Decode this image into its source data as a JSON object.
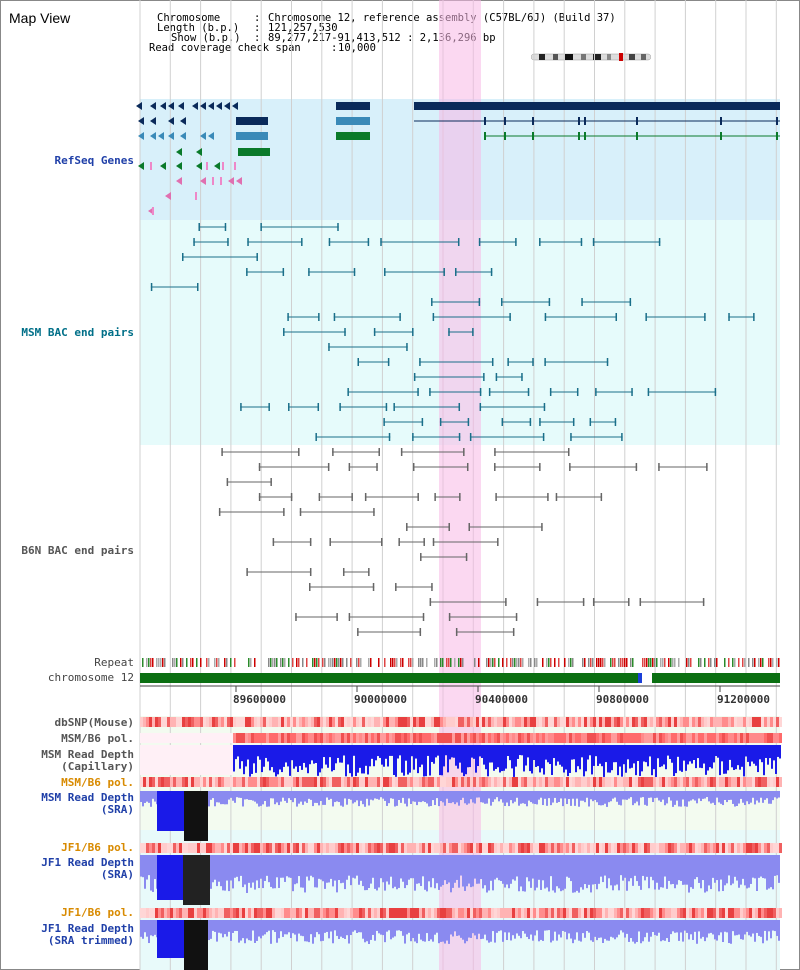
{
  "view_title": "Map View",
  "info": {
    "chromosome_key": "Chromosome",
    "chromosome_val": "Chromosome 12, reference assembly (C57BL/6J) (Build 37)",
    "length_key": "Length (b.p.)",
    "length_val": "121,257,530",
    "show_key": "Show (b.p.)",
    "show_val": "89,277,217-91,413,512 : 2,136,296 bp",
    "coverage_key": "Read coverage check span",
    "coverage_val": "10,000"
  },
  "tracks": {
    "refseq": "RefSeq Genes",
    "msm_bac": "MSM BAC end pairs",
    "b6n_bac": "B6N BAC end pairs",
    "repeat": "Repeat",
    "chromosome": "chromosome 12",
    "dbsnp": "dbSNP(Mouse)",
    "msm_b6_pol_1": "MSM/B6 pol.",
    "msm_depth_cap_1": "MSM Read Depth",
    "msm_depth_cap_2": "(Capillary)",
    "msm_b6_pol_2": "MSM/B6 pol.",
    "msm_depth_sra_1": "MSM Read Depth",
    "msm_depth_sra_2": "(SRA)",
    "jf1_b6_pol_1": "JF1/B6 pol.",
    "jf1_depth_sra_1": "JF1 Read Depth",
    "jf1_depth_sra_2": "(SRA)",
    "jf1_b6_pol_2": "JF1/B6 pol.",
    "jf1_depth_trim_1": "JF1 Read Depth",
    "jf1_depth_trim_2": "(SRA trimmed)"
  },
  "scale_ticks": [
    "89600000",
    "90000000",
    "90400000",
    "90800000",
    "91200000"
  ],
  "colors": {
    "refseq_bg": "#d8f0fa",
    "msm_bg": "#e6fbfb",
    "b6n_bg": "#ffffff",
    "highlight": "#fbd3f0",
    "gene_dark": "#0a2a5a",
    "gene_mid": "#3a8ab8",
    "gene_green": "#0a7a2a",
    "msm_line": "#1a6f8a",
    "b6n_line": "#666666",
    "chrom_green": "#0b6f12",
    "depth_blue": "#1a1ae8"
  }
}
